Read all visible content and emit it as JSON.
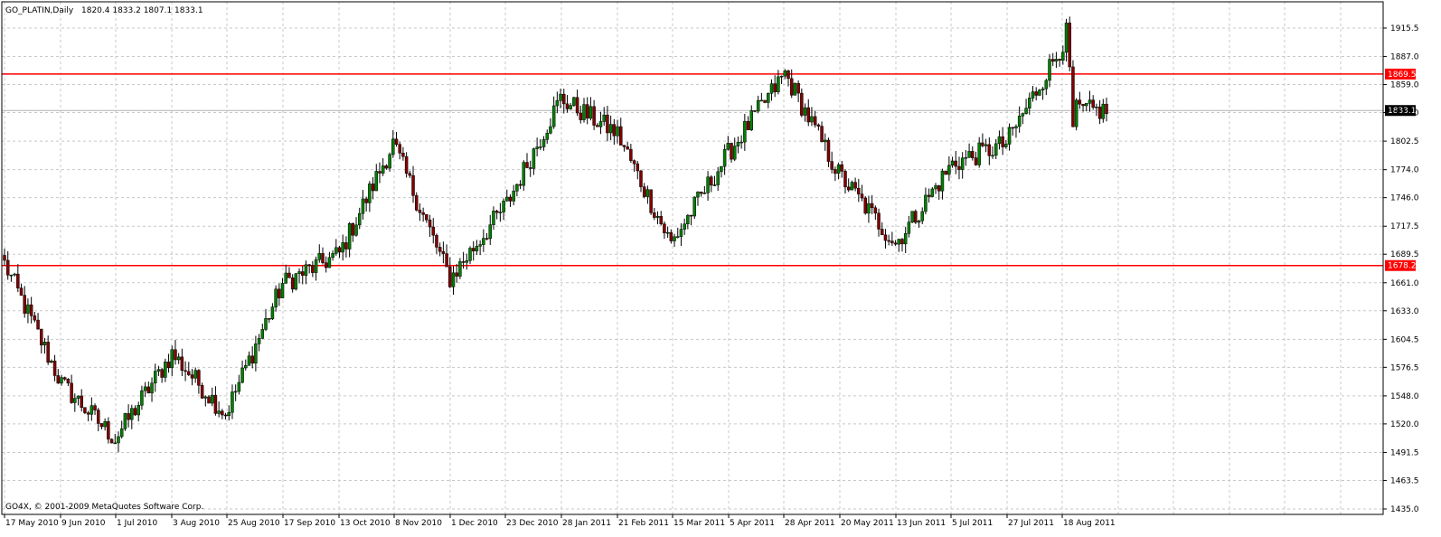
{
  "header": {
    "symbol": "GO_PLATIN,Daily",
    "ohlc": "1820.4 1833.2 1807.1 1833.1"
  },
  "copyright": "GO4X, © 2001-2009 MetaQuotes Software Corp.",
  "colors": {
    "background": "#ffffff",
    "grid": "#c8c8c8",
    "bull_fill": "#008000",
    "bear_fill": "#800000",
    "wick": "#000000",
    "level_line": "#ff0000",
    "price_tag_current": "#000000"
  },
  "chart_data": {
    "type": "candlestick",
    "title": "GO_PLATIN,Daily",
    "x_tick_labels": [
      "17 May 2010",
      "9 Jun 2010",
      "1 Jul 2010",
      "3 Aug 2010",
      "25 Aug 2010",
      "17 Sep 2010",
      "13 Oct 2010",
      "8 Nov 2010",
      "1 Dec 2010",
      "23 Dec 2010",
      "28 Jan 2011",
      "21 Feb 2011",
      "15 Mar 2011",
      "5 Apr 2011",
      "28 Apr 2011",
      "20 May 2011",
      "13 Jun 2011",
      "5 Jul 2011",
      "27 Jul 2011",
      "18 Aug 2011"
    ],
    "y_tick_labels": [
      "1915.5",
      "1887.0",
      "1859.0",
      "1831.0",
      "1802.5",
      "1774.0",
      "1746.0",
      "1717.5",
      "1689.5",
      "1661.0",
      "1633.0",
      "1604.5",
      "1576.5",
      "1548.0",
      "1520.0",
      "1491.5",
      "1463.5",
      "1435.0"
    ],
    "ylim": [
      1435.0,
      1915.5
    ],
    "grid": true,
    "horizontal_levels": [
      {
        "label": "1869.5",
        "value": 1869.5
      },
      {
        "label": "1678.2",
        "value": 1678.2
      }
    ],
    "current_price": {
      "label": "1833.1",
      "value": 1833.1
    },
    "key_points": [
      {
        "date": "17 May 2010",
        "close": 1680
      },
      {
        "date": "9 Jun 2010",
        "close": 1560
      },
      {
        "date": "1 Jul 2010",
        "close": 1505
      },
      {
        "date": "3 Aug 2010",
        "close": 1590
      },
      {
        "date": "25 Aug 2010",
        "close": 1530
      },
      {
        "date": "17 Sep 2010",
        "close": 1660
      },
      {
        "date": "13 Oct 2010",
        "close": 1690
      },
      {
        "date": "8 Nov 2010",
        "close": 1800
      },
      {
        "date": "1 Dec 2010",
        "close": 1665
      },
      {
        "date": "23 Dec 2010",
        "close": 1740
      },
      {
        "date": "28 Jan 2011",
        "close": 1845
      },
      {
        "date": "21 Feb 2011",
        "close": 1810
      },
      {
        "date": "15 Mar 2011",
        "close": 1700
      },
      {
        "date": "5 Apr 2011",
        "close": 1790
      },
      {
        "date": "28 Apr 2011",
        "close": 1870
      },
      {
        "date": "20 May 2011",
        "close": 1770
      },
      {
        "date": "13 Jun 2011",
        "close": 1700
      },
      {
        "date": "5 Jul 2011",
        "close": 1780
      },
      {
        "date": "27 Jul 2011",
        "close": 1800
      },
      {
        "date": "18 Aug 2011",
        "close": 1900
      }
    ]
  }
}
